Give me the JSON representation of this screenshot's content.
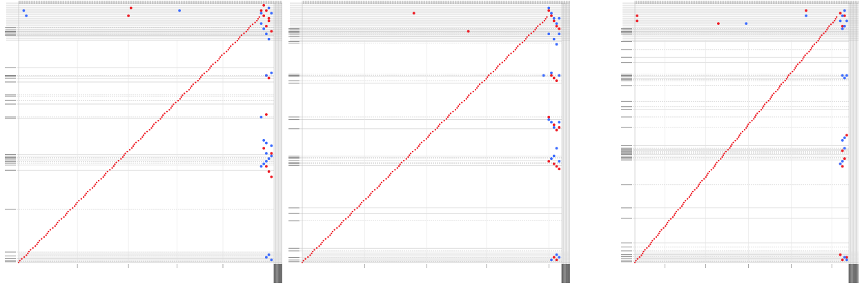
{
  "colors": {
    "forward": "#ee1c25",
    "reverse": "#3b6bff",
    "grid_major": "#cfcfcf",
    "grid_dense": "#d6d6d6"
  },
  "panels": [
    {
      "xlabel": "",
      "ylabel": "",
      "chart_data": {
        "type": "scatter",
        "title": "",
        "xlim": [
          0,
          100
        ],
        "ylim": [
          0,
          100
        ],
        "grid": true,
        "legend": "none",
        "series": [
          {
            "color_key": "forward",
            "points": [
              [
                95,
                97
              ],
              [
                96,
                99
              ],
              [
                97,
                97
              ],
              [
                98,
                93
              ],
              [
                97,
                91
              ],
              [
                99,
                89
              ],
              [
                97,
                37
              ],
              [
                98,
                35
              ],
              [
                99,
                33
              ],
              [
                96,
                44
              ],
              [
                97,
                57
              ],
              [
                99,
                42
              ],
              [
                43,
                95
              ],
              [
                44,
                98
              ],
              [
                97,
                72
              ],
              [
                98,
                71
              ],
              [
                98,
                94
              ],
              [
                96,
                95
              ]
            ]
          },
          {
            "color_key": "reverse",
            "points": [
              [
                2,
                97
              ],
              [
                3,
                95
              ],
              [
                63,
                97
              ],
              [
                95,
                96
              ],
              [
                95,
                92
              ],
              [
                96,
                90
              ],
              [
                97,
                88
              ],
              [
                98,
                86
              ],
              [
                99,
                96
              ],
              [
                98,
                98
              ],
              [
                96,
                47
              ],
              [
                97,
                46
              ],
              [
                99,
                45
              ],
              [
                95,
                56
              ],
              [
                95,
                37
              ],
              [
                96,
                38
              ],
              [
                97,
                39
              ],
              [
                98,
                40
              ],
              [
                97,
                42
              ],
              [
                99,
                41
              ],
              [
                97,
                72
              ],
              [
                99,
                73
              ],
              [
                97,
                2
              ],
              [
                98,
                3
              ],
              [
                99,
                1
              ]
            ]
          }
        ],
        "diagonal": {
          "from": 0,
          "to": 95,
          "color_key": "forward"
        }
      }
    },
    {
      "xlabel": "",
      "ylabel": "",
      "chart_data": {
        "type": "scatter",
        "title": "",
        "xlim": [
          0,
          100
        ],
        "ylim": [
          0,
          100
        ],
        "grid": true,
        "legend": "none",
        "series": [
          {
            "color_key": "forward",
            "points": [
              [
                43,
                96
              ],
              [
                64,
                89
              ],
              [
                95,
                97
              ],
              [
                96,
                95
              ],
              [
                97,
                93
              ],
              [
                98,
                91
              ],
              [
                99,
                90
              ],
              [
                96,
                72
              ],
              [
                97,
                71
              ],
              [
                98,
                70
              ],
              [
                95,
                56
              ],
              [
                97,
                53
              ],
              [
                98,
                51
              ],
              [
                99,
                52
              ],
              [
                95,
                39
              ],
              [
                97,
                38
              ],
              [
                98,
                37
              ],
              [
                99,
                36
              ],
              [
                97,
                2
              ],
              [
                98,
                1
              ]
            ]
          },
          {
            "color_key": "reverse",
            "points": [
              [
                95,
                98
              ],
              [
                96,
                96
              ],
              [
                97,
                94
              ],
              [
                98,
                92
              ],
              [
                99,
                94
              ],
              [
                95,
                88
              ],
              [
                97,
                86
              ],
              [
                98,
                84
              ],
              [
                99,
                88
              ],
              [
                93,
                72
              ],
              [
                96,
                73
              ],
              [
                99,
                72
              ],
              [
                95,
                55
              ],
              [
                96,
                54
              ],
              [
                97,
                52
              ],
              [
                99,
                54
              ],
              [
                96,
                40
              ],
              [
                97,
                41
              ],
              [
                98,
                44
              ],
              [
                99,
                39
              ],
              [
                98,
                3
              ],
              [
                99,
                2
              ],
              [
                96,
                1
              ]
            ]
          }
        ],
        "diagonal": {
          "from": 0,
          "to": 95,
          "color_key": "forward"
        }
      }
    },
    {
      "xlabel": "",
      "ylabel": "",
      "chart_data": {
        "type": "scatter",
        "title": "",
        "xlim": [
          0,
          100
        ],
        "ylim": [
          0,
          100
        ],
        "grid": true,
        "legend": "none",
        "series": [
          {
            "color_key": "forward",
            "points": [
              [
                1,
                95
              ],
              [
                1,
                93
              ],
              [
                39,
                92
              ],
              [
                80,
                97
              ],
              [
                96,
                96
              ],
              [
                97,
                91
              ],
              [
                98,
                95
              ],
              [
                99,
                49
              ],
              [
                97,
                43
              ],
              [
                98,
                40
              ],
              [
                96,
                38
              ],
              [
                97,
                37
              ],
              [
                99,
                2
              ],
              [
                97,
                1
              ],
              [
                96,
                3
              ]
            ]
          },
          {
            "color_key": "reverse",
            "points": [
              [
                98,
                97
              ],
              [
                97,
                95
              ],
              [
                99,
                93
              ],
              [
                96,
                93
              ],
              [
                97,
                90
              ],
              [
                98,
                91
              ],
              [
                52,
                92
              ],
              [
                80,
                95
              ],
              [
                99,
                72
              ],
              [
                98,
                71
              ],
              [
                97,
                72
              ],
              [
                98,
                48
              ],
              [
                97,
                47
              ],
              [
                98,
                44
              ],
              [
                96,
                38
              ],
              [
                97,
                39
              ],
              [
                98,
                2
              ],
              [
                99,
                1
              ]
            ]
          }
        ],
        "diagonal": {
          "from": 0,
          "to": 95,
          "color_key": "forward"
        }
      }
    }
  ]
}
